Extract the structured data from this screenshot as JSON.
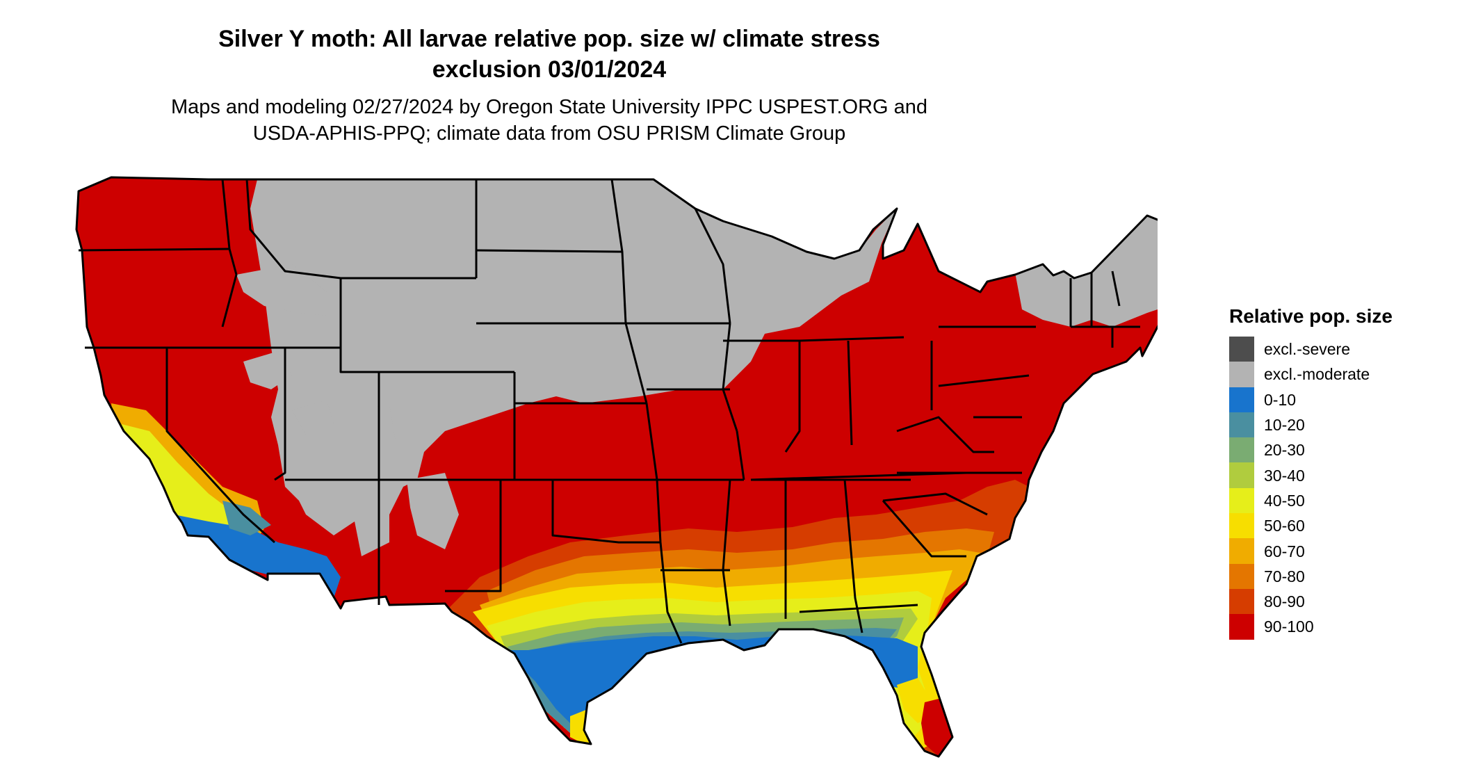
{
  "title": {
    "line1": "Silver Y moth: All larvae relative pop. size w/ climate stress",
    "line2": "exclusion 03/01/2024"
  },
  "subtitle": {
    "line1": "Maps and modeling 02/27/2024 by Oregon State University IPPC USPEST.ORG and",
    "line2": "USDA-APHIS-PPQ; climate data from OSU PRISM Climate Group"
  },
  "legend": {
    "title": "Relative pop. size",
    "items": [
      {
        "label": "excl.-severe",
        "color": "#4d4d4d"
      },
      {
        "label": "excl.-moderate",
        "color": "#b3b3b3"
      },
      {
        "label": "0-10",
        "color": "#1874cd"
      },
      {
        "label": "10-20",
        "color": "#4a8fa0"
      },
      {
        "label": "20-30",
        "color": "#7aac72"
      },
      {
        "label": "30-40",
        "color": "#b0cc3e"
      },
      {
        "label": "40-50",
        "color": "#e6ee1a"
      },
      {
        "label": "50-60",
        "color": "#f7de00"
      },
      {
        "label": "60-70",
        "color": "#f0ac00"
      },
      {
        "label": "70-80",
        "color": "#e47600"
      },
      {
        "label": "80-90",
        "color": "#d63d00"
      },
      {
        "label": "90-100",
        "color": "#cd0000"
      }
    ]
  },
  "map": {
    "region": "Contiguous United States",
    "colors": {
      "red": "#cd0000",
      "red2": "#d63d00",
      "orange": "#e47600",
      "amber": "#f0ac00",
      "gold": "#f7de00",
      "yellow": "#e6ee1a",
      "lime": "#b0cc3e",
      "green": "#7aac72",
      "teal": "#4a8fa0",
      "blue": "#1874cd",
      "grey": "#b3b3b3",
      "dark": "#4d4d4d"
    }
  }
}
